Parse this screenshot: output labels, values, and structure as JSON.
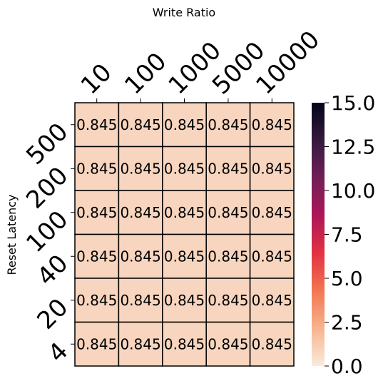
{
  "chart_data": {
    "type": "heatmap",
    "xlabel": "Write Ratio",
    "ylabel": "Reset Latency",
    "x_categories": [
      "10",
      "100",
      "1000",
      "5000",
      "10000"
    ],
    "y_categories": [
      "500",
      "200",
      "100",
      "40",
      "20",
      "4"
    ],
    "values": [
      [
        0.845,
        0.845,
        0.845,
        0.845,
        0.845
      ],
      [
        0.845,
        0.845,
        0.845,
        0.845,
        0.845
      ],
      [
        0.845,
        0.845,
        0.845,
        0.845,
        0.845
      ],
      [
        0.845,
        0.845,
        0.845,
        0.845,
        0.845
      ],
      [
        0.845,
        0.845,
        0.845,
        0.845,
        0.845
      ],
      [
        0.845,
        0.845,
        0.845,
        0.845,
        0.845
      ]
    ],
    "annotation_format": "0.845",
    "colorbar": {
      "min": 0,
      "max": 15,
      "ticks": [
        "0.0",
        "2.5",
        "5.0",
        "7.5",
        "10.0",
        "12.5",
        "15.0"
      ],
      "colormap_stops": [
        "#faebdd",
        "#f6b48e",
        "#f37651",
        "#e13342",
        "#ad1759",
        "#701f57",
        "#35193e",
        "#03051a"
      ]
    },
    "cell_border_color": "#000000",
    "x_axis_position": "top"
  }
}
